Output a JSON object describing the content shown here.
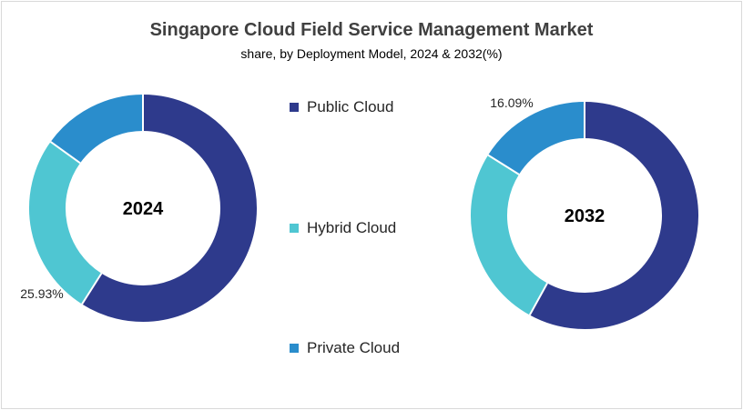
{
  "title": "Singapore Cloud Field Service Management Market",
  "subtitle": "share, by Deployment Model, 2024 & 2032(%)",
  "legend": [
    {
      "label": "Public Cloud",
      "color": "#2e3a8c"
    },
    {
      "label": "Hybrid Cloud",
      "color": "#4fc6d2"
    },
    {
      "label": "Private Cloud",
      "color": "#2a8dcc"
    }
  ],
  "chart_data": [
    {
      "type": "pie",
      "center_label": "2024",
      "categories": [
        "Public Cloud",
        "Hybrid Cloud",
        "Private Cloud"
      ],
      "values": [
        59.0,
        25.93,
        15.07
      ],
      "data_labels": [
        "",
        "25.93%",
        ""
      ]
    },
    {
      "type": "pie",
      "center_label": "2032",
      "categories": [
        "Public Cloud",
        "Hybrid Cloud",
        "Private Cloud"
      ],
      "values": [
        58.0,
        25.91,
        16.09
      ],
      "data_labels": [
        "",
        "",
        "16.09%"
      ]
    }
  ]
}
